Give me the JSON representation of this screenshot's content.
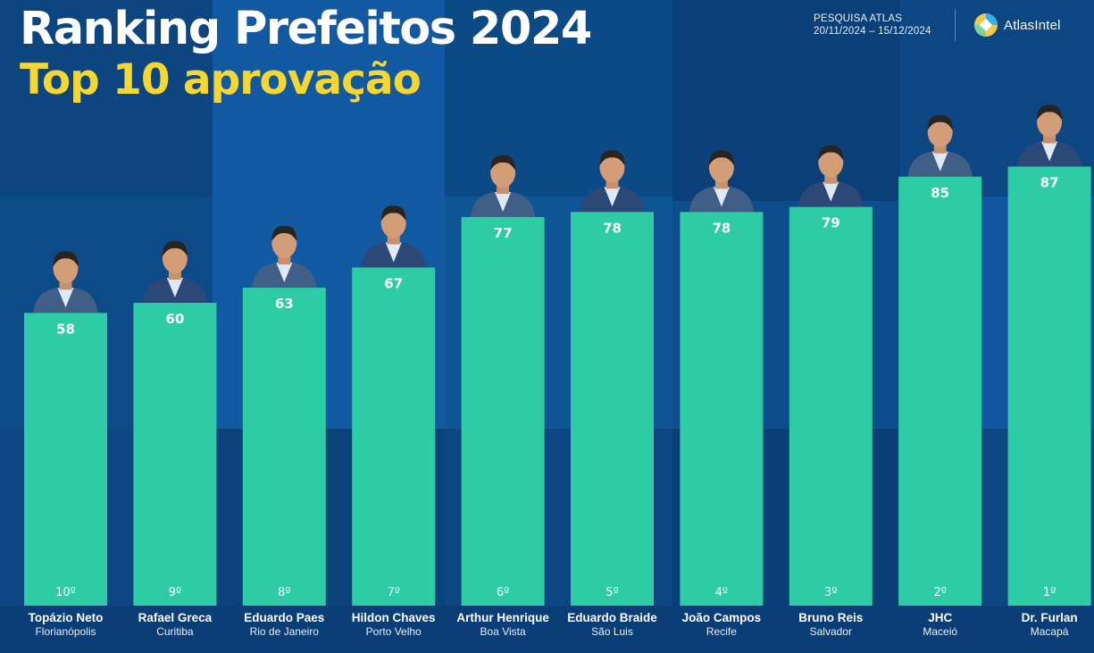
{
  "header": {
    "title": "Ranking Prefeitos 2024",
    "subtitle": "Top 10 aprovação",
    "survey_label": "PESQUISA ATLAS",
    "survey_dates": "20/11/2024 – 15/12/2024",
    "brand": "AtlasIntel"
  },
  "colors": {
    "bar": "#2ecca5",
    "title": "#ffffff",
    "subtitle": "#f6d632",
    "background": "#0f4f8c"
  },
  "chart_data": {
    "type": "bar",
    "title": "Ranking Prefeitos 2024",
    "subtitle": "Top 10 aprovação",
    "ylim": [
      0,
      100
    ],
    "grid": false,
    "categories": [
      "Topázio Neto",
      "Rafael Greca",
      "Eduardo Paes",
      "Hildon Chaves",
      "Arthur Henrique",
      "Eduardo Braide",
      "João Campos",
      "Bruno Reis",
      "JHC",
      "Dr. Furlan"
    ],
    "cities": [
      "Florianópolis",
      "Curitiba",
      "Rio de Janeiro",
      "Porto Velho",
      "Boa Vista",
      "São Luis",
      "Recife",
      "Salvador",
      "Maceió",
      "Macapá"
    ],
    "ranks": [
      "10º",
      "9º",
      "8º",
      "7º",
      "6º",
      "5º",
      "4º",
      "3º",
      "2º",
      "1º"
    ],
    "values": [
      58,
      60,
      63,
      67,
      77,
      78,
      78,
      79,
      85,
      87
    ],
    "portrait_icons": [
      "portrait-icon",
      "portrait-icon",
      "portrait-icon",
      "portrait-icon",
      "portrait-icon",
      "portrait-icon",
      "portrait-icon",
      "portrait-icon",
      "portrait-icon",
      "portrait-icon"
    ]
  }
}
